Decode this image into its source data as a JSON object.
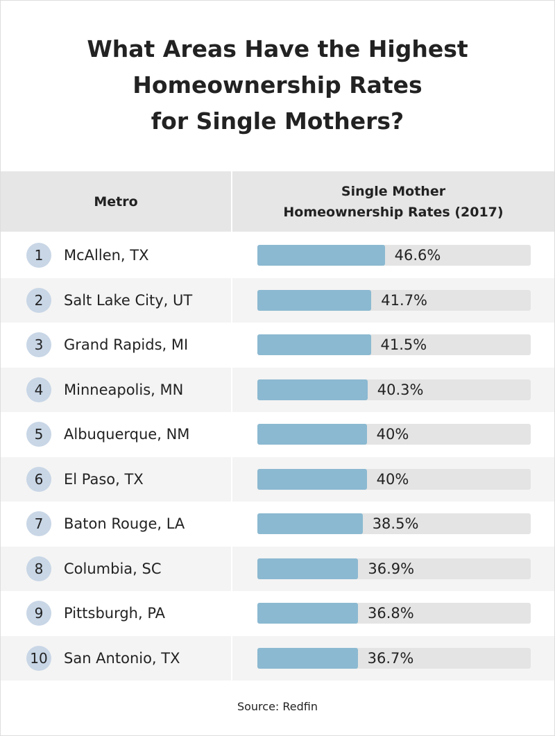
{
  "chart_data": {
    "type": "bar",
    "title": [
      "What Areas Have the Highest",
      "Homeownership Rates",
      "for Single Mothers?"
    ],
    "column_headers": {
      "metro": "Metro",
      "rates": [
        "Single Mother",
        "Homeownership Rates (2017)"
      ]
    },
    "ranks": [
      1,
      2,
      3,
      4,
      5,
      6,
      7,
      8,
      9,
      10
    ],
    "categories": [
      "McAllen, TX",
      "Salt Lake City, UT",
      "Grand Rapids, MI",
      "Minneapolis, MN",
      "Albuquerque, NM",
      "El Paso, TX",
      "Baton Rouge, LA",
      "Columbia, SC",
      "Pittsburgh, PA",
      "San Antonio, TX"
    ],
    "values": [
      46.6,
      41.7,
      41.5,
      40.3,
      40,
      40,
      38.5,
      36.9,
      36.8,
      36.7
    ],
    "value_labels": [
      "46.6%",
      "41.7%",
      "41.5%",
      "40.3%",
      "40%",
      "40%",
      "38.5%",
      "36.9%",
      "36.8%",
      "36.7%"
    ],
    "xlim": [
      0,
      100
    ],
    "color": "#8bb9d1",
    "source": "Source: Redfin"
  }
}
